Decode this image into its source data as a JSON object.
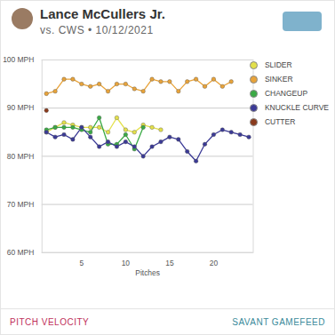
{
  "chart_data": {
    "type": "line",
    "title": "Lance McCullers Jr.",
    "subtitle": "vs. CWS • 10/12/2021",
    "x_label": "Pitches",
    "annotations": [
      "PITCH VELOCITY",
      "SAVANT GAMEFEED"
    ],
    "x": [
      1,
      2,
      3,
      4,
      5,
      6,
      7,
      8,
      9,
      10,
      11,
      12,
      13,
      14,
      15,
      16,
      17,
      18,
      19,
      20,
      21,
      22,
      23,
      24
    ],
    "series": [
      {
        "name": "SLIDER",
        "color": "#e3e04a",
        "values": [
          85,
          86,
          87,
          86.5,
          86,
          86,
          86,
          85,
          88,
          85.5,
          85,
          86.5,
          86,
          85.5,
          null,
          null,
          null,
          null,
          null,
          null,
          null,
          null,
          null,
          null
        ]
      },
      {
        "name": "SINKER",
        "color": "#e8a33a",
        "values": [
          93,
          93.5,
          96,
          96,
          95,
          94.5,
          95,
          93.5,
          95,
          95,
          94,
          93.5,
          96,
          95.5,
          95.5,
          93.5,
          95.5,
          96,
          94.5,
          96,
          94.5,
          95.5,
          null,
          null
        ]
      },
      {
        "name": "CHANGEUP",
        "color": "#3aaa45",
        "values": [
          85.5,
          86,
          86,
          86,
          85.5,
          85,
          88,
          82.5,
          82.5,
          84.5,
          81.5,
          86,
          null,
          null,
          null,
          null,
          null,
          null,
          null,
          null,
          null,
          null,
          null,
          null
        ]
      },
      {
        "name": "KNUCKLE CURVE",
        "color": "#3b3a96",
        "values": [
          85,
          84,
          84.5,
          83.5,
          86,
          84,
          82,
          83,
          82,
          83,
          82,
          80,
          82,
          83,
          84,
          83.5,
          81,
          79,
          82.5,
          84.5,
          85.5,
          85,
          84.5,
          84
        ]
      },
      {
        "name": "CUTTER",
        "color": "#8a3a1c",
        "values": [
          89.5,
          null,
          null,
          null,
          null,
          null,
          null,
          null,
          null,
          null,
          null,
          null,
          null,
          null,
          null,
          null,
          null,
          null,
          null,
          null,
          null,
          null,
          null,
          null
        ]
      }
    ],
    "xlim": [
      0.5,
      24.5
    ],
    "xticks": [
      5,
      10,
      15,
      20
    ],
    "ylim": [
      60,
      100
    ],
    "yticks": [
      {
        "value": 60,
        "label": "60 MPH"
      },
      {
        "value": 70,
        "label": "70 MPH"
      },
      {
        "value": 80,
        "label": "80 MPH"
      },
      {
        "value": 90,
        "label": "90 MPH"
      },
      {
        "value": 100,
        "label": "100 MPH"
      }
    ],
    "grid": true,
    "legend": "right",
    "marker": "circle"
  }
}
